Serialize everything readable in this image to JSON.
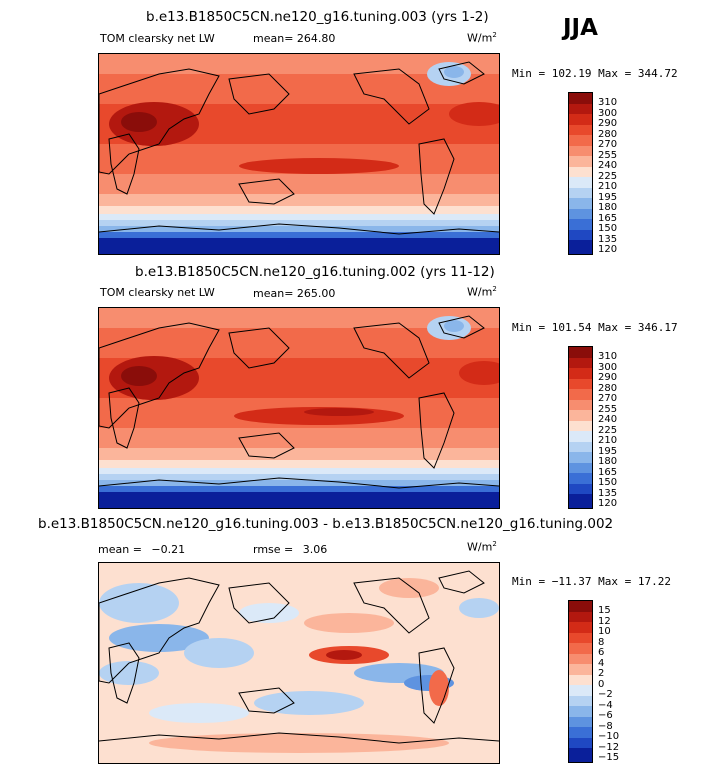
{
  "season": "JJA",
  "units_prefix": "W/m",
  "units_exp": "2",
  "panels": [
    {
      "title": "b.e13.B1850C5CN.ne120_g16.tuning.003 (yrs 1-2)",
      "variable": "TOM clearsky net LW",
      "mean_label": "mean=",
      "mean_value": "264.80",
      "minmax": "Min = 102.19 Max = 344.72",
      "levels": [
        "310",
        "300",
        "290",
        "280",
        "270",
        "255",
        "240",
        "225",
        "210",
        "195",
        "180",
        "165",
        "150",
        "135",
        "120"
      ]
    },
    {
      "title": "b.e13.B1850C5CN.ne120_g16.tuning.002 (yrs 11-12)",
      "variable": "TOM clearsky net LW",
      "mean_label": "mean=",
      "mean_value": "265.00",
      "minmax": "Min = 101.54 Max = 346.17",
      "levels": [
        "310",
        "300",
        "290",
        "280",
        "270",
        "255",
        "240",
        "225",
        "210",
        "195",
        "180",
        "165",
        "150",
        "135",
        "120"
      ]
    },
    {
      "title": "b.e13.B1850C5CN.ne120_g16.tuning.003 - b.e13.B1850C5CN.ne120_g16.tuning.002",
      "mean_label": "mean =",
      "mean_value": "−0.21",
      "rmse_label": "rmse =",
      "rmse_value": "3.06",
      "minmax": "Min = −11.37 Max =   17.22",
      "levels": [
        "15",
        "12",
        "10",
        "8",
        "6",
        "4",
        "2",
        "0",
        "−2",
        "−4",
        "−6",
        "−8",
        "−10",
        "−12",
        "−15"
      ]
    }
  ],
  "colorbar_colors": [
    "#8a0d0a",
    "#b3180f",
    "#d32b17",
    "#e8492c",
    "#f26a4a",
    "#f78d6f",
    "#fbb59b",
    "#fde0d0",
    "#dbe9f8",
    "#b5d2f2",
    "#8ab6ea",
    "#5e93e0",
    "#3a6fd6",
    "#1f48c2",
    "#0a1f9a"
  ]
}
